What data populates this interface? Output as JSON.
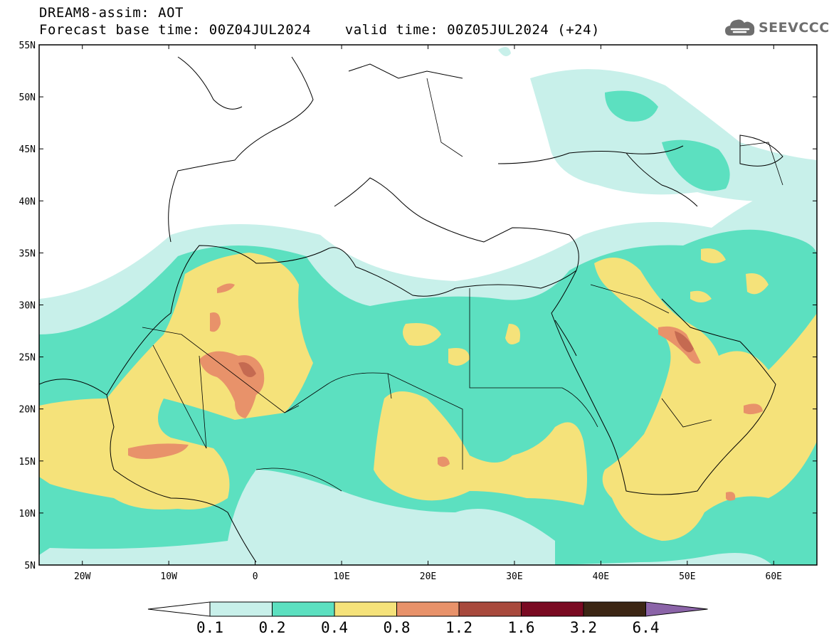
{
  "header": {
    "line1": "DREAM8-assim: AOT",
    "line2": "Forecast base time: 00Z04JUL2024    valid time: 00Z05JUL2024 (+24)"
  },
  "logo": {
    "text": "SEEVCCC",
    "icon": "cloud-icon"
  },
  "map": {
    "lat_labels": [
      "55N",
      "50N",
      "45N",
      "40N",
      "35N",
      "30N",
      "25N",
      "20N",
      "15N",
      "10N",
      "5N"
    ],
    "lon_labels": [
      "20W",
      "10W",
      "0",
      "10E",
      "20E",
      "30E",
      "40E",
      "50E",
      "60E"
    ],
    "lat_range": [
      5,
      55
    ],
    "lon_range": [
      -25,
      65
    ]
  },
  "colorbar": {
    "labels": [
      "0.1",
      "0.2",
      "0.4",
      "0.8",
      "1.2",
      "1.6",
      "3.2",
      "6.4"
    ],
    "colors": [
      "#ffffff",
      "#c8f0ea",
      "#5ce0c0",
      "#f5e27a",
      "#e8926a",
      "#a8493c",
      "#7a0a22",
      "#3c2614",
      "#8b64a8"
    ]
  },
  "palette": {
    "very_low": "#c8f0ea",
    "low": "#5ce0c0",
    "medium": "#f5e27a",
    "high": "#e8926a",
    "very_high": "#a8493c"
  }
}
